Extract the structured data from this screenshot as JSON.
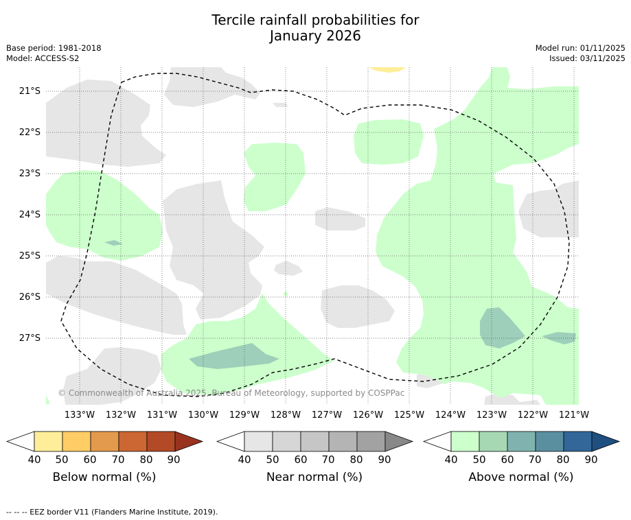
{
  "title_line1": "Tercile rainfall probabilities for",
  "title_line2": "January 2026",
  "meta": {
    "base_period": "Base period: 1981-2018",
    "model": "Model: ACCESS-S2",
    "model_run": "Model run: 01/11/2025",
    "issued": "Issued: 03/11/2025"
  },
  "map": {
    "latitude_labels": [
      "21°S",
      "22°S",
      "23°S",
      "24°S",
      "25°S",
      "26°S",
      "27°S"
    ],
    "longitude_labels": [
      "133°W",
      "132°W",
      "131°W",
      "130°W",
      "129°W",
      "128°W",
      "127°W",
      "126°W",
      "125°W",
      "124°W",
      "123°W",
      "122°W",
      "121°W"
    ],
    "copyright": "© Commonwealth of Australia 2025, Bureau of Meteorology, supported by COSPPac",
    "colors": {
      "above_40": "#ccffcc",
      "above_50": "#9ecfba",
      "near_40": "#e6e6e6",
      "below_40": "#ffee99",
      "border": "#000000"
    }
  },
  "colorbars": {
    "ticks": [
      "40",
      "50",
      "60",
      "70",
      "80",
      "90"
    ],
    "below": {
      "label": "Below normal (%)",
      "colors": [
        "#ffee99",
        "#ffcc66",
        "#e39a4c",
        "#cc6633",
        "#b34a27",
        "#993320"
      ]
    },
    "near": {
      "label": "Near normal (%)",
      "colors": [
        "#e6e6e6",
        "#d6d6d6",
        "#c6c6c6",
        "#b4b4b4",
        "#a2a2a2",
        "#888888"
      ]
    },
    "above": {
      "label": "Above normal (%)",
      "colors": [
        "#ccffcc",
        "#a6d9b3",
        "#80b3b0",
        "#5a8fa0",
        "#336699",
        "#1f4f80"
      ]
    }
  },
  "footer": "--  --  -- EEZ border V11 (Flanders Marine Institute, 2019)."
}
